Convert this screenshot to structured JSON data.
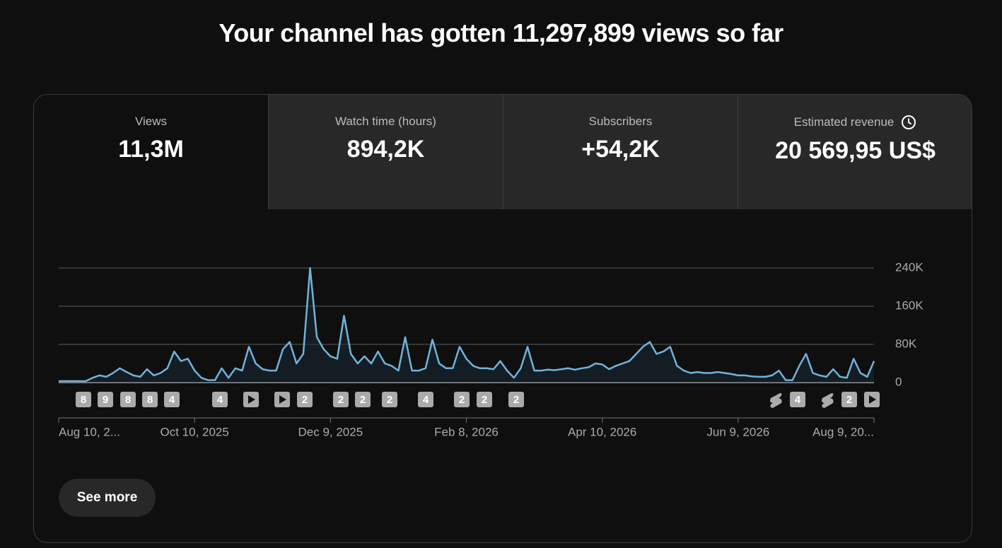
{
  "header": {
    "title": "Your channel has gotten 11,297,899 views so far"
  },
  "tabs": [
    {
      "label": "Views",
      "value": "11,3M"
    },
    {
      "label": "Watch time (hours)",
      "value": "894,2K"
    },
    {
      "label": "Subscribers",
      "value": "+54,2K"
    },
    {
      "label": "Estimated revenue",
      "value": "20 569,95 US$"
    }
  ],
  "chart_data": {
    "type": "line",
    "color": "#6fb3dc",
    "categories": [
      "Aug 10, 2...",
      null,
      null,
      null,
      null,
      null,
      null,
      null,
      null,
      null,
      null,
      null,
      null,
      null,
      null,
      null,
      null,
      null,
      null,
      null,
      "Oct 10, 2025",
      null,
      null,
      null,
      null,
      null,
      null,
      null,
      null,
      null,
      null,
      null,
      null,
      null,
      null,
      null,
      null,
      null,
      null,
      null,
      "Dec 9, 2025",
      null,
      null,
      null,
      null,
      null,
      null,
      null,
      null,
      null,
      null,
      null,
      null,
      null,
      null,
      null,
      null,
      null,
      null,
      null,
      "Feb 8, 2026",
      null,
      null,
      null,
      null,
      null,
      null,
      null,
      null,
      null,
      null,
      null,
      null,
      null,
      null,
      null,
      null,
      null,
      null,
      null,
      "Apr 10, 2026",
      null,
      null,
      null,
      null,
      null,
      null,
      null,
      null,
      null,
      null,
      null,
      null,
      null,
      null,
      null,
      null,
      null,
      null,
      null,
      "Jun 9, 2026",
      null,
      null,
      null,
      null,
      null,
      null,
      null,
      null,
      null,
      null,
      null,
      null,
      null,
      null,
      null,
      null,
      null,
      null,
      null,
      "Aug 9, 20..."
    ],
    "values": [
      3000,
      3000,
      3000,
      3000,
      3000,
      10000,
      15000,
      12000,
      20000,
      30000,
      22000,
      15000,
      12000,
      28000,
      15000,
      20000,
      30000,
      65000,
      45000,
      50000,
      25000,
      10000,
      5000,
      5000,
      30000,
      10000,
      30000,
      25000,
      75000,
      40000,
      28000,
      25000,
      25000,
      70000,
      85000,
      40000,
      60000,
      240000,
      95000,
      70000,
      55000,
      50000,
      140000,
      60000,
      40000,
      55000,
      40000,
      65000,
      40000,
      35000,
      25000,
      95000,
      25000,
      25000,
      30000,
      90000,
      40000,
      30000,
      30000,
      75000,
      50000,
      35000,
      30000,
      30000,
      28000,
      45000,
      25000,
      10000,
      30000,
      75000,
      25000,
      25000,
      27000,
      26000,
      28000,
      30000,
      27000,
      30000,
      32000,
      40000,
      38000,
      28000,
      35000,
      40000,
      45000,
      60000,
      75000,
      85000,
      60000,
      65000,
      75000,
      35000,
      25000,
      20000,
      22000,
      20000,
      20000,
      22000,
      20000,
      18000,
      15000,
      15000,
      13000,
      12000,
      12000,
      15000,
      25000,
      5000,
      5000,
      35000,
      60000,
      20000,
      15000,
      12000,
      28000,
      12000,
      10000,
      50000,
      20000,
      12000,
      45000
    ],
    "ylim": [
      0,
      240000
    ],
    "yticks": [
      0,
      {
        "value": 80000,
        "label": "80K"
      },
      {
        "value": 160000,
        "label": "160K"
      },
      {
        "value": 240000,
        "label": "240K"
      }
    ],
    "grid": true,
    "annotations": [
      "8",
      "9",
      "8",
      "8",
      "4",
      "4",
      "2",
      "2",
      "2",
      "2",
      "4",
      "2",
      "2",
      "2",
      "4",
      "2"
    ]
  },
  "button": "See more"
}
